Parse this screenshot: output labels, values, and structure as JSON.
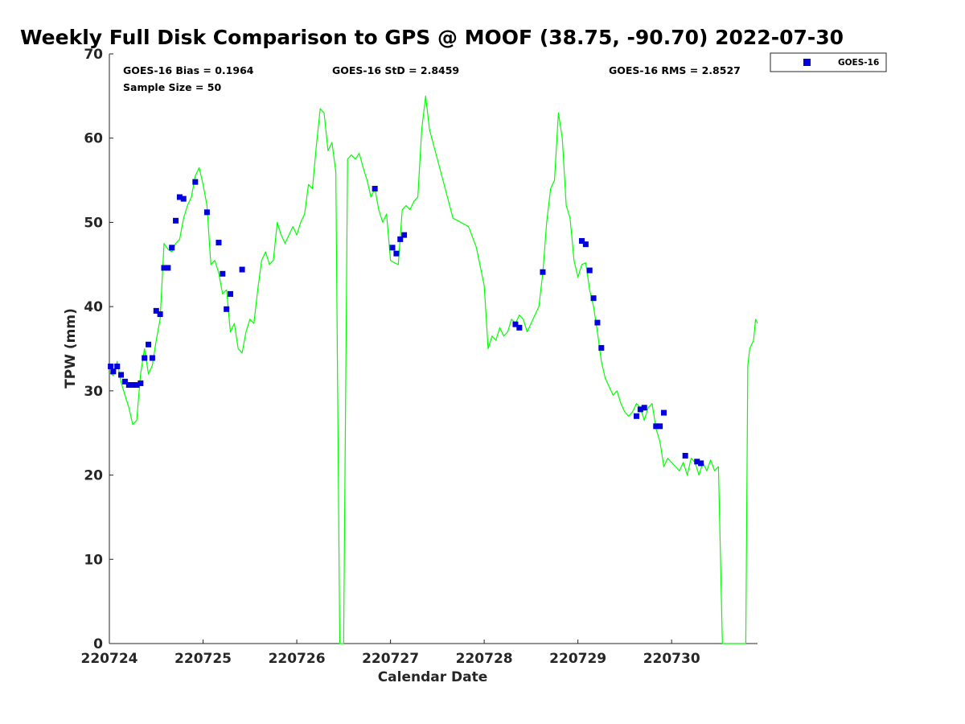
{
  "chart_data": {
    "type": "scatter",
    "title": "Weekly Full Disk Comparison to GPS @ MOOF (38.75, -90.70) 2022-07-30",
    "xlabel": "Calendar Date",
    "ylabel": "TPW (mm)",
    "xlim": [
      "2022-07-24 00:00",
      "2022-07-30 22:00"
    ],
    "ylim": [
      0,
      70
    ],
    "x_ticks": [
      {
        "value": "2022-07-24",
        "label": "220724"
      },
      {
        "value": "2022-07-25",
        "label": "220725"
      },
      {
        "value": "2022-07-26",
        "label": "220726"
      },
      {
        "value": "2022-07-27",
        "label": "220727"
      },
      {
        "value": "2022-07-28",
        "label": "220728"
      },
      {
        "value": "2022-07-29",
        "label": "220729"
      },
      {
        "value": "2022-07-30",
        "label": "220730"
      }
    ],
    "y_ticks": [
      "0",
      "10",
      "20",
      "30",
      "40",
      "50",
      "60",
      "70"
    ],
    "stats": {
      "bias": "GOES-16 Bias = 0.1964",
      "std": "GOES-16 StD = 2.8459",
      "rms": "GOES-16 RMS = 2.8527",
      "sample": "Sample Size = 50"
    },
    "legend": {
      "position": "top-right, outside plot",
      "entries": [
        "GOES-16"
      ]
    },
    "grid": false,
    "series": [
      {
        "kind": "line",
        "color": "#00ff00",
        "points": [
          [
            "2022-07-24 00:00",
            32.2
          ],
          [
            "2022-07-24 01:00",
            31.8
          ],
          [
            "2022-07-24 02:00",
            33.5
          ],
          [
            "2022-07-24 03:00",
            31.0
          ],
          [
            "2022-07-24 04:00",
            29.5
          ],
          [
            "2022-07-24 05:00",
            28.0
          ],
          [
            "2022-07-24 06:00",
            26.0
          ],
          [
            "2022-07-24 07:00",
            26.5
          ],
          [
            "2022-07-24 08:00",
            32.0
          ],
          [
            "2022-07-24 09:00",
            35.0
          ],
          [
            "2022-07-24 10:00",
            32.0
          ],
          [
            "2022-07-24 11:00",
            33.0
          ],
          [
            "2022-07-24 12:00",
            36.0
          ],
          [
            "2022-07-24 13:00",
            38.5
          ],
          [
            "2022-07-24 14:00",
            47.5
          ],
          [
            "2022-07-24 15:00",
            46.8
          ],
          [
            "2022-07-24 16:00",
            46.5
          ],
          [
            "2022-07-24 17:00",
            47.5
          ],
          [
            "2022-07-24 18:00",
            48.0
          ],
          [
            "2022-07-24 19:00",
            50.5
          ],
          [
            "2022-07-24 20:00",
            52.0
          ],
          [
            "2022-07-24 21:00",
            53.0
          ],
          [
            "2022-07-24 22:00",
            55.5
          ],
          [
            "2022-07-24 23:00",
            56.5
          ],
          [
            "2022-07-25 00:00",
            54.5
          ],
          [
            "2022-07-25 01:00",
            52.0
          ],
          [
            "2022-07-25 02:00",
            45.0
          ],
          [
            "2022-07-25 03:00",
            45.5
          ],
          [
            "2022-07-25 04:00",
            44.0
          ],
          [
            "2022-07-25 05:00",
            41.5
          ],
          [
            "2022-07-25 06:00",
            42.0
          ],
          [
            "2022-07-25 07:00",
            37.0
          ],
          [
            "2022-07-25 08:00",
            38.0
          ],
          [
            "2022-07-25 09:00",
            35.0
          ],
          [
            "2022-07-25 10:00",
            34.5
          ],
          [
            "2022-07-25 11:00",
            37.0
          ],
          [
            "2022-07-25 12:00",
            38.5
          ],
          [
            "2022-07-25 13:00",
            38.0
          ],
          [
            "2022-07-25 14:00",
            42.0
          ],
          [
            "2022-07-25 15:00",
            45.5
          ],
          [
            "2022-07-25 16:00",
            46.5
          ],
          [
            "2022-07-25 17:00",
            45.0
          ],
          [
            "2022-07-25 18:00",
            45.5
          ],
          [
            "2022-07-25 19:00",
            50.0
          ],
          [
            "2022-07-25 20:00",
            48.5
          ],
          [
            "2022-07-25 21:00",
            47.5
          ],
          [
            "2022-07-25 22:00",
            48.5
          ],
          [
            "2022-07-25 23:00",
            49.5
          ],
          [
            "2022-07-26 00:00",
            48.5
          ],
          [
            "2022-07-26 01:00",
            50.0
          ],
          [
            "2022-07-26 02:00",
            51.0
          ],
          [
            "2022-07-26 03:00",
            54.5
          ],
          [
            "2022-07-26 04:00",
            54.0
          ],
          [
            "2022-07-26 05:00",
            59.0
          ],
          [
            "2022-07-26 06:00",
            63.5
          ],
          [
            "2022-07-26 07:00",
            63.0
          ],
          [
            "2022-07-26 08:00",
            58.5
          ],
          [
            "2022-07-26 09:00",
            59.5
          ],
          [
            "2022-07-26 10:00",
            56.0
          ],
          [
            "2022-07-26 11:00",
            0
          ],
          [
            "2022-07-26 12:00",
            0
          ],
          [
            "2022-07-26 13:00",
            57.5
          ],
          [
            "2022-07-26 14:00",
            58.0
          ],
          [
            "2022-07-26 15:00",
            57.5
          ],
          [
            "2022-07-26 16:00",
            58.2
          ],
          [
            "2022-07-26 17:00",
            56.5
          ],
          [
            "2022-07-26 18:00",
            55.0
          ],
          [
            "2022-07-26 19:00",
            53.0
          ],
          [
            "2022-07-26 20:00",
            54.0
          ],
          [
            "2022-07-26 21:00",
            51.5
          ],
          [
            "2022-07-26 22:00",
            50.0
          ],
          [
            "2022-07-26 23:00",
            51.0
          ],
          [
            "2022-07-27 00:00",
            45.5
          ],
          [
            "2022-07-27 01:00",
            45.2
          ],
          [
            "2022-07-27 02:00",
            45.0
          ],
          [
            "2022-07-27 03:00",
            51.5
          ],
          [
            "2022-07-27 04:00",
            52.0
          ],
          [
            "2022-07-27 05:00",
            51.5
          ],
          [
            "2022-07-27 06:00",
            52.5
          ],
          [
            "2022-07-27 07:00",
            53.0
          ],
          [
            "2022-07-27 08:00",
            61.0
          ],
          [
            "2022-07-27 09:00",
            65.0
          ],
          [
            "2022-07-27 10:00",
            61.0
          ],
          [
            "2022-07-27 12:00",
            57.5
          ],
          [
            "2022-07-27 14:00",
            54.0
          ],
          [
            "2022-07-27 16:00",
            50.5
          ],
          [
            "2022-07-27 20:00",
            49.5
          ],
          [
            "2022-07-27 22:00",
            47.0
          ],
          [
            "2022-07-28 00:00",
            42.5
          ],
          [
            "2022-07-28 01:00",
            35.0
          ],
          [
            "2022-07-28 02:00",
            36.5
          ],
          [
            "2022-07-28 03:00",
            36.0
          ],
          [
            "2022-07-28 04:00",
            37.5
          ],
          [
            "2022-07-28 05:00",
            36.5
          ],
          [
            "2022-07-28 06:00",
            37.0
          ],
          [
            "2022-07-28 07:00",
            38.5
          ],
          [
            "2022-07-28 08:00",
            38.0
          ],
          [
            "2022-07-28 09:00",
            39.0
          ],
          [
            "2022-07-28 10:00",
            38.5
          ],
          [
            "2022-07-28 11:00",
            37.0
          ],
          [
            "2022-07-28 12:00",
            38.0
          ],
          [
            "2022-07-28 13:00",
            39.0
          ],
          [
            "2022-07-28 14:00",
            40.0
          ],
          [
            "2022-07-28 15:00",
            44.0
          ],
          [
            "2022-07-28 16:00",
            50.0
          ],
          [
            "2022-07-28 17:00",
            54.0
          ],
          [
            "2022-07-28 18:00",
            55.0
          ],
          [
            "2022-07-28 19:00",
            63.0
          ],
          [
            "2022-07-28 20:00",
            60.0
          ],
          [
            "2022-07-28 21:00",
            52.0
          ],
          [
            "2022-07-28 22:00",
            50.5
          ],
          [
            "2022-07-28 23:00",
            45.5
          ],
          [
            "2022-07-29 00:00",
            43.5
          ],
          [
            "2022-07-29 01:00",
            45.0
          ],
          [
            "2022-07-29 02:00",
            45.2
          ],
          [
            "2022-07-29 03:00",
            42.0
          ],
          [
            "2022-07-29 04:00",
            40.0
          ],
          [
            "2022-07-29 05:00",
            37.0
          ],
          [
            "2022-07-29 06:00",
            33.5
          ],
          [
            "2022-07-29 07:00",
            31.5
          ],
          [
            "2022-07-29 08:00",
            30.5
          ],
          [
            "2022-07-29 09:00",
            29.5
          ],
          [
            "2022-07-29 10:00",
            30.0
          ],
          [
            "2022-07-29 11:00",
            28.5
          ],
          [
            "2022-07-29 12:00",
            27.5
          ],
          [
            "2022-07-29 13:00",
            27.0
          ],
          [
            "2022-07-29 14:00",
            27.5
          ],
          [
            "2022-07-29 15:00",
            28.5
          ],
          [
            "2022-07-29 16:00",
            28.0
          ],
          [
            "2022-07-29 17:00",
            26.5
          ],
          [
            "2022-07-29 18:00",
            28.0
          ],
          [
            "2022-07-29 19:00",
            28.5
          ],
          [
            "2022-07-29 20:00",
            25.5
          ],
          [
            "2022-07-29 21:00",
            24.0
          ],
          [
            "2022-07-29 22:00",
            21.0
          ],
          [
            "2022-07-29 23:00",
            22.0
          ],
          [
            "2022-07-30 00:00",
            21.5
          ],
          [
            "2022-07-30 01:00",
            21.0
          ],
          [
            "2022-07-30 02:00",
            20.5
          ],
          [
            "2022-07-30 03:00",
            21.5
          ],
          [
            "2022-07-30 04:00",
            20.0
          ],
          [
            "2022-07-30 05:00",
            22.0
          ],
          [
            "2022-07-30 06:00",
            21.5
          ],
          [
            "2022-07-30 07:00",
            20.0
          ],
          [
            "2022-07-30 08:00",
            21.5
          ],
          [
            "2022-07-30 09:00",
            20.5
          ],
          [
            "2022-07-30 10:00",
            21.8
          ],
          [
            "2022-07-30 11:00",
            20.5
          ],
          [
            "2022-07-30 12:00",
            21.0
          ],
          [
            "2022-07-30 13:00",
            0
          ],
          [
            "2022-07-30 19:00",
            0
          ],
          [
            "2022-07-30 19:30",
            33.0
          ],
          [
            "2022-07-30 20:00",
            35.0
          ],
          [
            "2022-07-30 21:00",
            36.0
          ],
          [
            "2022-07-30 21:30",
            38.5
          ],
          [
            "2022-07-30 22:00",
            38.0
          ]
        ]
      },
      {
        "name": "GOES-16",
        "kind": "marker",
        "color": "#0000dd",
        "points": [
          [
            "2022-07-24 00:20",
            32.9
          ],
          [
            "2022-07-24 01:00",
            32.3
          ],
          [
            "2022-07-24 02:00",
            32.9
          ],
          [
            "2022-07-24 03:00",
            31.9
          ],
          [
            "2022-07-24 04:00",
            31.1
          ],
          [
            "2022-07-24 05:00",
            30.7
          ],
          [
            "2022-07-24 06:00",
            30.7
          ],
          [
            "2022-07-24 07:00",
            30.7
          ],
          [
            "2022-07-24 08:00",
            30.9
          ],
          [
            "2022-07-24 09:00",
            33.9
          ],
          [
            "2022-07-24 10:00",
            35.5
          ],
          [
            "2022-07-24 11:00",
            33.9
          ],
          [
            "2022-07-24 12:00",
            39.5
          ],
          [
            "2022-07-24 13:00",
            39.1
          ],
          [
            "2022-07-24 14:00",
            44.6
          ],
          [
            "2022-07-24 15:00",
            44.6
          ],
          [
            "2022-07-24 16:00",
            47.0
          ],
          [
            "2022-07-24 17:00",
            50.2
          ],
          [
            "2022-07-24 18:00",
            53.0
          ],
          [
            "2022-07-24 19:00",
            52.8
          ],
          [
            "2022-07-24 22:00",
            54.8
          ],
          [
            "2022-07-25 01:00",
            51.2
          ],
          [
            "2022-07-25 04:00",
            47.6
          ],
          [
            "2022-07-25 05:00",
            43.9
          ],
          [
            "2022-07-25 06:00",
            39.7
          ],
          [
            "2022-07-25 07:00",
            41.5
          ],
          [
            "2022-07-25 10:00",
            44.4
          ],
          [
            "2022-07-26 20:00",
            54.0
          ],
          [
            "2022-07-27 00:30",
            47.0
          ],
          [
            "2022-07-27 01:30",
            46.3
          ],
          [
            "2022-07-27 02:30",
            48.0
          ],
          [
            "2022-07-27 03:30",
            48.5
          ],
          [
            "2022-07-28 08:00",
            37.9
          ],
          [
            "2022-07-28 09:00",
            37.5
          ],
          [
            "2022-07-28 15:00",
            44.1
          ],
          [
            "2022-07-29 01:00",
            47.8
          ],
          [
            "2022-07-29 02:00",
            47.4
          ],
          [
            "2022-07-29 03:00",
            44.3
          ],
          [
            "2022-07-29 04:00",
            41.0
          ],
          [
            "2022-07-29 05:00",
            38.1
          ],
          [
            "2022-07-29 06:00",
            35.1
          ],
          [
            "2022-07-29 15:00",
            27.0
          ],
          [
            "2022-07-29 16:00",
            27.8
          ],
          [
            "2022-07-29 17:00",
            28.0
          ],
          [
            "2022-07-29 20:00",
            25.8
          ],
          [
            "2022-07-29 21:00",
            25.8
          ],
          [
            "2022-07-29 22:00",
            27.4
          ],
          [
            "2022-07-30 03:30",
            22.3
          ],
          [
            "2022-07-30 06:30",
            21.6
          ],
          [
            "2022-07-30 07:30",
            21.4
          ]
        ]
      }
    ]
  }
}
